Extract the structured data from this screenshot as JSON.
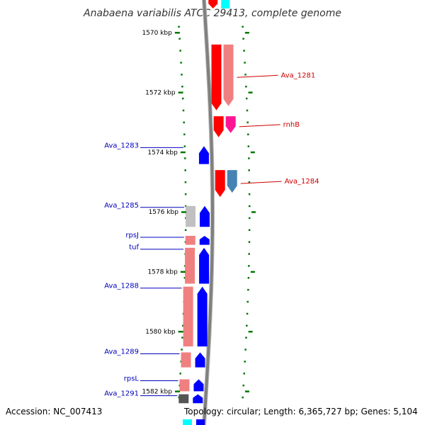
{
  "title": "Anabaena variabilis ATCC 29413, complete genome",
  "accession_text": "Accession: NC_007413",
  "topology_text": "Topology: circular; Length: 6,365,727 bp; Genes: 5,104",
  "colors": {
    "forward_label": "#cc0000",
    "reverse_label": "#0000bb",
    "tick": "#007700",
    "backbone": "#808080",
    "forward_gene": "#ff0000",
    "forward_cds": "#f08080",
    "reverse_gene": "#0000ff",
    "reverse_cds": "#f08080",
    "rrna_like": "#ff1493",
    "steel": "#4682b4",
    "gray_cds": "#c0c0c0",
    "dark_cds": "#555555",
    "cyan": "#00ffff"
  },
  "kbp_ticks": [
    {
      "label": "1570 kbp",
      "kbp": 1570
    },
    {
      "label": "1572 kbp",
      "kbp": 1572
    },
    {
      "label": "1574 kbp",
      "kbp": 1574
    },
    {
      "label": "1576 kbp",
      "kbp": 1576
    },
    {
      "label": "1578 kbp",
      "kbp": 1578
    },
    {
      "label": "1580 kbp",
      "kbp": 1580
    },
    {
      "label": "1582 kbp",
      "kbp": 1582
    }
  ],
  "forward_genes": [
    {
      "name": "Ava_1281",
      "start_kbp": 1570.4,
      "end_kbp": 1572.6,
      "feature_color": "forward_gene",
      "cds_color": "forward_cds"
    },
    {
      "name": "rnhB",
      "start_kbp": 1572.8,
      "end_kbp": 1573.5,
      "feature_color": "forward_gene",
      "cds_color": "rrna_like"
    },
    {
      "name": "Ava_1284",
      "start_kbp": 1574.6,
      "end_kbp": 1575.5,
      "feature_color": "forward_gene",
      "cds_color": "steel"
    }
  ],
  "reverse_genes": [
    {
      "name": "Ava_1283",
      "start_kbp": 1573.8,
      "end_kbp": 1574.4,
      "cds": false
    },
    {
      "name": "Ava_1285",
      "start_kbp": 1575.8,
      "end_kbp": 1576.5,
      "cds": true,
      "cds_color": "gray_cds"
    },
    {
      "name": "rpsJ",
      "start_kbp": 1576.8,
      "end_kbp": 1577.1,
      "cds": true,
      "cds_color": "reverse_cds"
    },
    {
      "name": "tuf",
      "start_kbp": 1577.2,
      "end_kbp": 1578.4,
      "cds": true,
      "cds_color": "reverse_cds"
    },
    {
      "name": "Ava_1288",
      "start_kbp": 1578.5,
      "end_kbp": 1580.5,
      "cds": true,
      "cds_color": "reverse_cds"
    },
    {
      "name": "Ava_1289",
      "start_kbp": 1580.7,
      "end_kbp": 1581.2,
      "cds": true,
      "cds_color": "reverse_cds"
    },
    {
      "name": "rpsL",
      "start_kbp": 1581.6,
      "end_kbp": 1582.0,
      "cds": true,
      "cds_color": "reverse_cds"
    },
    {
      "name": "Ava_1291",
      "start_kbp": 1582.1,
      "end_kbp": 1582.4,
      "cds": true,
      "cds_color": "dark_cds"
    }
  ]
}
